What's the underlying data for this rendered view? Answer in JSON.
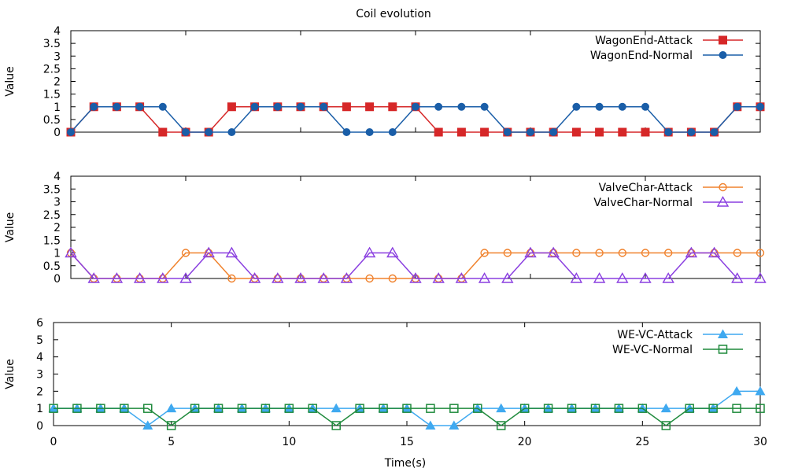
{
  "title": "Coil evolution",
  "xlabel": "Time(s)",
  "chart_data": [
    {
      "type": "line",
      "ylabel": "Value",
      "xlim": [
        0,
        30
      ],
      "ylim": [
        0,
        4
      ],
      "y_ticks": [
        "0",
        "0.5",
        "1",
        "1.5",
        "2",
        "2.5",
        "3",
        "3.5",
        "4"
      ],
      "legend_position": "top-right",
      "x": [
        0,
        1,
        2,
        3,
        4,
        5,
        6,
        7,
        8,
        9,
        10,
        11,
        12,
        13,
        14,
        15,
        16,
        17,
        18,
        19,
        20,
        21,
        22,
        23,
        24,
        25,
        26,
        27,
        28,
        29,
        30
      ],
      "series": [
        {
          "name": "WagonEnd-Attack",
          "color": "#d62728",
          "marker": "filled-square",
          "values": [
            0,
            1,
            1,
            1,
            0,
            0,
            0,
            1,
            1,
            1,
            1,
            1,
            1,
            1,
            1,
            1,
            0,
            0,
            0,
            0,
            0,
            0,
            0,
            0,
            0,
            0,
            0,
            0,
            0,
            1,
            1
          ]
        },
        {
          "name": "WagonEnd-Normal",
          "color": "#1a5ea8",
          "marker": "filled-circle",
          "values": [
            0,
            1,
            1,
            1,
            1,
            0,
            0,
            0,
            1,
            1,
            1,
            1,
            0,
            0,
            0,
            1,
            1,
            1,
            1,
            0,
            0,
            0,
            1,
            1,
            1,
            1,
            0,
            0,
            0,
            1,
            1
          ]
        }
      ]
    },
    {
      "type": "line",
      "ylabel": "Value",
      "xlim": [
        0,
        30
      ],
      "ylim": [
        0,
        4
      ],
      "y_ticks": [
        "0",
        "0.5",
        "1",
        "1.5",
        "2",
        "2.5",
        "3",
        "3.5",
        "4"
      ],
      "legend_position": "top-right",
      "x": [
        0,
        1,
        2,
        3,
        4,
        5,
        6,
        7,
        8,
        9,
        10,
        11,
        12,
        13,
        14,
        15,
        16,
        17,
        18,
        19,
        20,
        21,
        22,
        23,
        24,
        25,
        26,
        27,
        28,
        29,
        30
      ],
      "series": [
        {
          "name": "ValveChar-Attack",
          "color": "#f0822d",
          "marker": "open-circle",
          "values": [
            1,
            0,
            0,
            0,
            0,
            1,
            1,
            0,
            0,
            0,
            0,
            0,
            0,
            0,
            0,
            0,
            0,
            0,
            1,
            1,
            1,
            1,
            1,
            1,
            1,
            1,
            1,
            1,
            1,
            1,
            1
          ]
        },
        {
          "name": "ValveChar-Normal",
          "color": "#8a3fe0",
          "marker": "open-triangle",
          "values": [
            1,
            0,
            0,
            0,
            0,
            0,
            1,
            1,
            0,
            0,
            0,
            0,
            0,
            1,
            1,
            0,
            0,
            0,
            0,
            0,
            1,
            1,
            0,
            0,
            0,
            0,
            0,
            1,
            1,
            0,
            0
          ]
        }
      ]
    },
    {
      "type": "line",
      "ylabel": "Value",
      "xlim": [
        0,
        30
      ],
      "ylim": [
        0,
        6
      ],
      "y_ticks": [
        "0",
        "1",
        "2",
        "3",
        "4",
        "5",
        "6"
      ],
      "x_ticks": [
        "0",
        "5",
        "10",
        "15",
        "20",
        "25",
        "30"
      ],
      "legend_position": "top-right",
      "x": [
        0,
        1,
        2,
        3,
        4,
        5,
        6,
        7,
        8,
        9,
        10,
        11,
        12,
        13,
        14,
        15,
        16,
        17,
        18,
        19,
        20,
        21,
        22,
        23,
        24,
        25,
        26,
        27,
        28,
        29,
        30
      ],
      "series": [
        {
          "name": "WE-VC-Attack",
          "color": "#3fa9f0",
          "marker": "filled-triangle",
          "values": [
            1,
            1,
            1,
            1,
            0,
            1,
            1,
            1,
            1,
            1,
            1,
            1,
            1,
            1,
            1,
            1,
            0,
            0,
            1,
            1,
            1,
            1,
            1,
            1,
            1,
            1,
            1,
            1,
            1,
            2,
            2
          ]
        },
        {
          "name": "WE-VC-Normal",
          "color": "#1f8a3c",
          "marker": "open-square",
          "values": [
            1,
            1,
            1,
            1,
            1,
            0,
            1,
            1,
            1,
            1,
            1,
            1,
            0,
            1,
            1,
            1,
            1,
            1,
            1,
            0,
            1,
            1,
            1,
            1,
            1,
            1,
            0,
            1,
            1,
            1,
            1
          ]
        }
      ]
    }
  ]
}
